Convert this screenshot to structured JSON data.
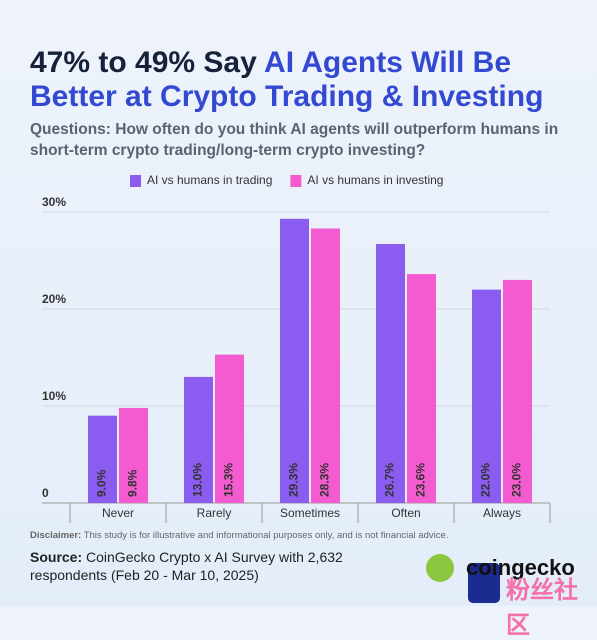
{
  "chart_data": {
    "type": "bar",
    "title_parts": [
      "47% to 49% Say",
      "AI Agents Will Be Better at Crypto Trading & Investing"
    ],
    "subtitle": "Questions: How often do you think AI agents will outperform humans in short-term crypto trading/long-term crypto investing?",
    "categories": [
      "Never",
      "Rarely",
      "Sometimes",
      "Often",
      "Always"
    ],
    "series": [
      {
        "name": "AI vs humans in trading",
        "color": "#8b5cf0",
        "values": [
          9.0,
          13.0,
          29.3,
          26.7,
          22.0
        ],
        "value_labels": [
          "9.0%",
          "13.0%",
          "29.3%",
          "26.7%",
          "22.0%"
        ]
      },
      {
        "name": "AI vs humans in investing",
        "color": "#f55bd0",
        "values": [
          9.8,
          15.3,
          28.3,
          23.6,
          23.0
        ],
        "value_labels": [
          "9.8%",
          "15.3%",
          "28.3%",
          "23.6%",
          "23.0%"
        ]
      }
    ],
    "ylim": [
      0,
      30
    ],
    "yticks": [
      0,
      {
        "value": 10,
        "label": "10%"
      },
      {
        "value": 20,
        "label": "20%"
      },
      {
        "value": 30,
        "label": "30%"
      }
    ],
    "grid": true,
    "legend": "top",
    "disclaimer_label": "Disclaimer:",
    "disclaimer": "This study is for illustrative and informational purposes only, and is not financial advice.",
    "source_label": "Source:",
    "source": "CoinGecko Crypto x AI Survey with 2,632 respondents (Feb 20 - Mar 10, 2025)",
    "brand": "coingecko",
    "watermark": "粉丝社区"
  }
}
